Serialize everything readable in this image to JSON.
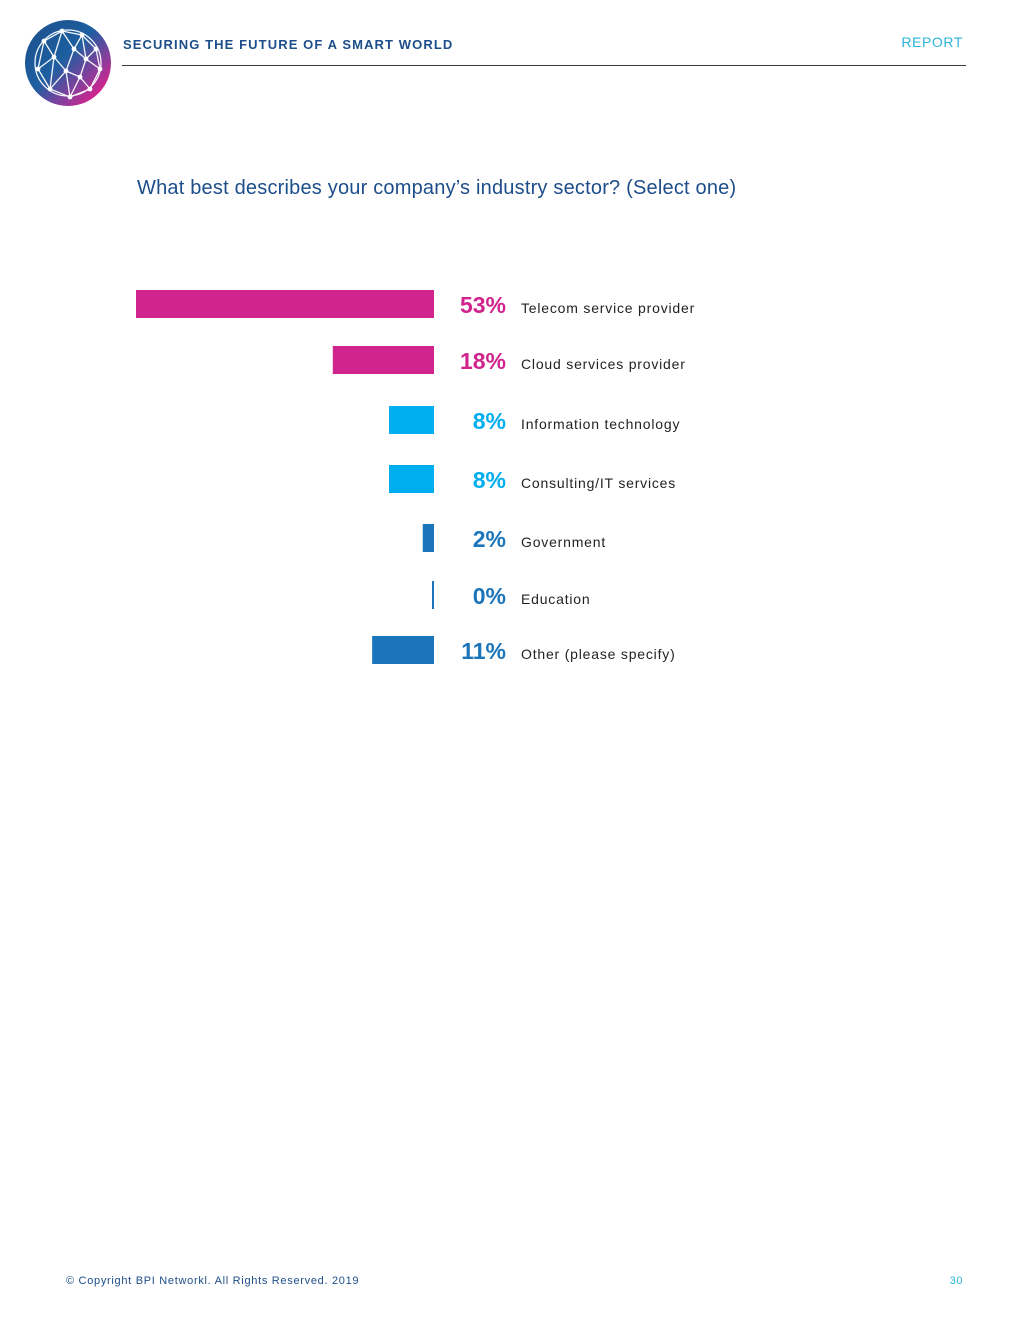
{
  "header": {
    "title": "SECURING THE FUTURE OF A SMART WORLD",
    "section": "REPORT"
  },
  "question": "What best describes your company’s industry sector? (Select one)",
  "chart_data": {
    "type": "bar",
    "orientation": "horizontal",
    "categories": [
      "Telecom service provider",
      "Cloud services provider",
      "Information technology",
      "Consulting/IT services",
      "Government",
      "Education",
      "Other (please specify)"
    ],
    "values": [
      53,
      18,
      8,
      8,
      2,
      0,
      11
    ],
    "value_labels": [
      "53%",
      "18%",
      "8%",
      "8%",
      "2%",
      "0%",
      "11%"
    ],
    "unit": "%",
    "bar_colors": [
      "#d0248c",
      "#d0248c",
      "#00aeef",
      "#00aeef",
      "#1b75bb",
      "#1b75bb",
      "#1b75bb"
    ],
    "title": "",
    "xlabel": "",
    "ylabel": "",
    "xlim": [
      0,
      53
    ],
    "grid": false,
    "legend": "none"
  },
  "footer": {
    "copyright": "© Copyright BPI Networkl. All Rights Reserved. 2019",
    "page_number": "30"
  },
  "colors": {
    "brand_navy": "#1d4e8a",
    "accent_cyan": "#2bb3d9",
    "accent_magenta": "#d0248c"
  }
}
